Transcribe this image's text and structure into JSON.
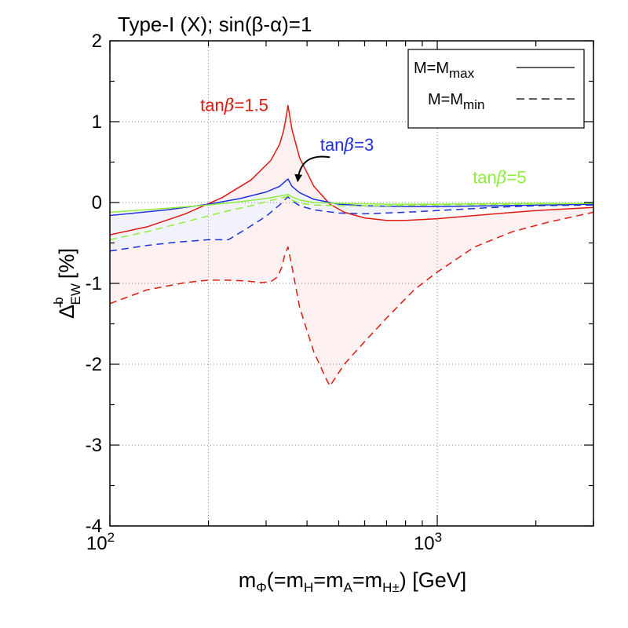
{
  "chart_data": {
    "type": "line",
    "title": "Type-I (X); sin(β-α)=1",
    "xlabel": {
      "prefix": "m",
      "prefix_sub": "Φ",
      "text1": "(=m",
      "sub_h": "H",
      "text2": "=m",
      "sub_a": "A",
      "text3": "=m",
      "sub_hpm": "H±",
      "text4": ") [GeV]"
    },
    "ylabel": {
      "symbol": "Δ̄",
      "sup": "b",
      "sub": "EW",
      "unit": "[%]"
    },
    "xscale": "log",
    "xlim": [
      100,
      3000
    ],
    "ylim": [
      -4,
      2
    ],
    "yticks": [
      {
        "v": 2,
        "label": "2"
      },
      {
        "v": 1,
        "label": "1"
      },
      {
        "v": 0,
        "label": "0"
      },
      {
        "v": -1,
        "label": "-1"
      },
      {
        "v": -2,
        "label": "-2"
      },
      {
        "v": -3,
        "label": "-3"
      },
      {
        "v": -4,
        "label": "-4"
      }
    ],
    "xticks": [
      {
        "v": 100,
        "base": "10",
        "exp": "2"
      },
      {
        "v": 1000,
        "base": "10",
        "exp": "3"
      }
    ],
    "grid": true,
    "legend": {
      "position": "top-right",
      "entries": [
        {
          "prefix": "M=M",
          "sub": "max",
          "style": "solid"
        },
        {
          "prefix": "M=M",
          "sub": "min",
          "style": "dashed"
        }
      ]
    },
    "colors": {
      "red": "#dd1a0f",
      "blue": "#1f30d9",
      "green": "#8fee3c",
      "band_red": "#fdf0f0",
      "band_blue": "#f2f2fb",
      "grid": "#8a8a8a"
    },
    "annotations": [
      {
        "prefix": "tan",
        "beta": "β",
        "suffix": "=1.5",
        "color": "red",
        "at": [
          240,
          1.13
        ]
      },
      {
        "prefix": "tan",
        "beta": "β",
        "suffix": "=3",
        "color": "blue",
        "at": [
          530,
          0.64
        ]
      },
      {
        "prefix": "tan",
        "beta": "β",
        "suffix": "=5",
        "color": "green",
        "at": [
          1550,
          0.24
        ]
      }
    ],
    "arrow": {
      "from": [
        470,
        0.56
      ],
      "to": [
        375,
        0.28
      ]
    },
    "series": [
      {
        "name": "tanβ=1.5, M=Mmax",
        "color": "red",
        "style": "solid",
        "x": [
          100,
          130,
          170,
          220,
          270,
          310,
          330,
          340,
          345,
          350,
          360,
          380,
          420,
          470,
          520,
          600,
          700,
          800,
          1000,
          1500,
          2000,
          3000
        ],
        "y": [
          -0.4,
          -0.3,
          -0.14,
          0.06,
          0.28,
          0.52,
          0.72,
          0.9,
          1.05,
          1.2,
          0.9,
          0.55,
          0.2,
          -0.02,
          -0.12,
          -0.19,
          -0.22,
          -0.22,
          -0.2,
          -0.14,
          -0.1,
          -0.06
        ]
      },
      {
        "name": "tanβ=1.5, M=Mmin",
        "color": "red",
        "style": "dashed",
        "x": [
          100,
          130,
          170,
          200,
          230,
          260,
          290,
          310,
          325,
          335,
          342,
          350,
          360,
          380,
          420,
          460,
          470,
          520,
          600,
          700,
          850,
          1000,
          1300,
          1700,
          2200,
          3000
        ],
        "y": [
          -1.25,
          -1.08,
          -0.99,
          -0.96,
          -0.96,
          -0.97,
          -0.99,
          -0.98,
          -0.92,
          -0.8,
          -0.65,
          -0.55,
          -0.8,
          -1.3,
          -1.85,
          -2.2,
          -2.27,
          -2.0,
          -1.72,
          -1.43,
          -1.08,
          -0.86,
          -0.55,
          -0.36,
          -0.24,
          -0.12
        ]
      },
      {
        "name": "tanβ=3, M=Mmax",
        "color": "blue",
        "style": "solid",
        "x": [
          100,
          150,
          200,
          250,
          300,
          330,
          345,
          350,
          360,
          380,
          420,
          500,
          600,
          800,
          1000,
          1500,
          3000
        ],
        "y": [
          -0.16,
          -0.09,
          -0.02,
          0.05,
          0.13,
          0.2,
          0.27,
          0.29,
          0.2,
          0.12,
          0.04,
          -0.02,
          -0.04,
          -0.05,
          -0.05,
          -0.04,
          -0.02
        ]
      },
      {
        "name": "tanβ=3, M=Mmin",
        "color": "blue",
        "style": "dashed",
        "x": [
          100,
          130,
          160,
          200,
          230,
          260,
          300,
          330,
          345,
          350,
          360,
          380,
          420,
          500,
          600,
          800,
          1000,
          1500,
          2000,
          3000
        ],
        "y": [
          -0.6,
          -0.53,
          -0.49,
          -0.46,
          -0.46,
          -0.33,
          -0.17,
          -0.03,
          0.05,
          0.07,
          0.02,
          -0.04,
          -0.09,
          -0.13,
          -0.14,
          -0.12,
          -0.1,
          -0.06,
          -0.04,
          -0.03
        ]
      },
      {
        "name": "tanβ=5, M=Mmax",
        "color": "green",
        "style": "solid",
        "x": [
          100,
          150,
          200,
          250,
          300,
          340,
          350,
          360,
          380,
          420,
          500,
          700,
          1000,
          2000,
          3000
        ],
        "y": [
          -0.12,
          -0.07,
          -0.03,
          0.01,
          0.05,
          0.09,
          0.1,
          0.07,
          0.03,
          0.0,
          -0.01,
          -0.02,
          -0.02,
          -0.01,
          -0.01
        ]
      },
      {
        "name": "tanβ=5, M=Mmin",
        "color": "green",
        "style": "dashed",
        "x": [
          100,
          130,
          170,
          220,
          270,
          320,
          345,
          350,
          360,
          380,
          420,
          500,
          700,
          1000,
          2000,
          3000
        ],
        "y": [
          -0.46,
          -0.36,
          -0.24,
          -0.12,
          -0.04,
          0.04,
          0.07,
          0.08,
          0.03,
          -0.01,
          -0.03,
          -0.04,
          -0.04,
          -0.03,
          -0.02,
          -0.01
        ]
      }
    ],
    "bands": [
      {
        "upper": "tanβ=1.5, M=Mmax",
        "lower": "tanβ=1.5, M=Mmin",
        "color": "band_red"
      },
      {
        "upper": "tanβ=3, M=Mmax",
        "lower": "tanβ=3, M=Mmin",
        "color": "band_blue"
      }
    ]
  }
}
